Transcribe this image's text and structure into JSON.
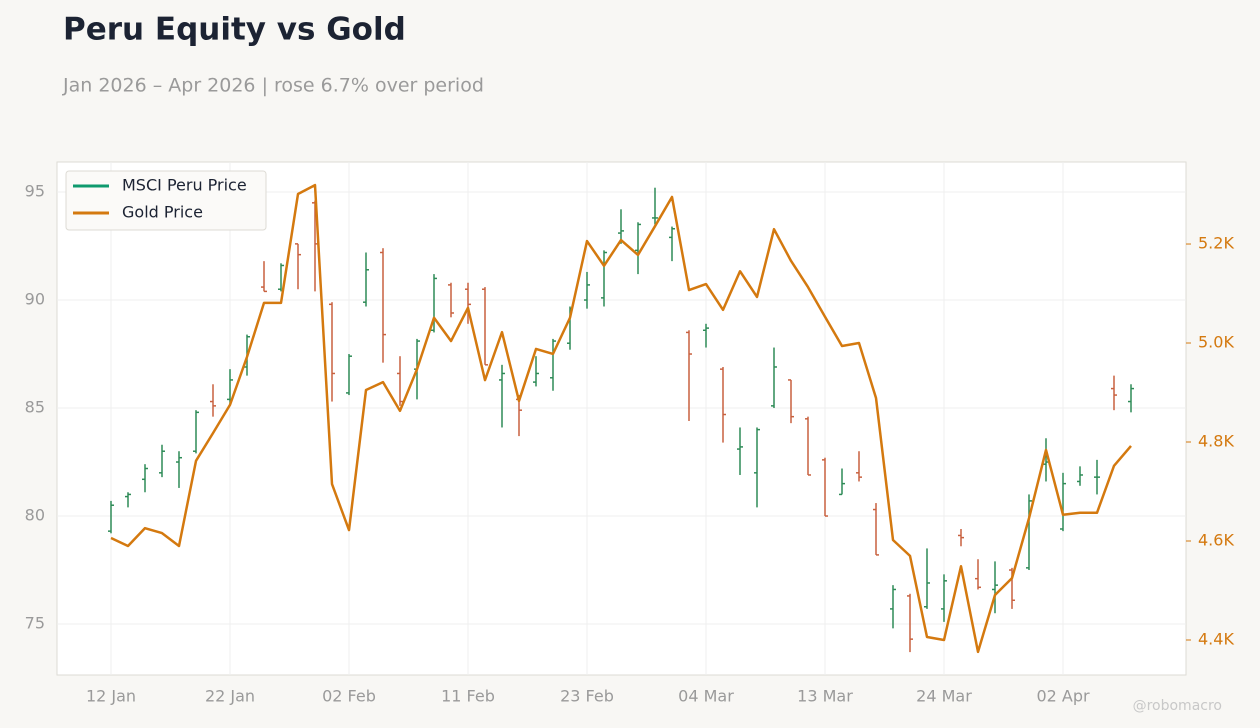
{
  "chart_data": {
    "type": "ohlc-line",
    "title": "Peru Equity vs Gold",
    "subtitle": "Jan 2026 – Apr 2026 | rose 6.7% over period",
    "watermark": "@robomacro",
    "categories": [
      "12 Jan",
      null,
      null,
      null,
      null,
      null,
      null,
      "22 Jan",
      null,
      null,
      null,
      null,
      null,
      null,
      "02 Feb",
      null,
      null,
      null,
      null,
      null,
      null,
      "11 Feb",
      null,
      null,
      null,
      null,
      null,
      null,
      "23 Feb",
      null,
      null,
      null,
      null,
      null,
      null,
      "04 Mar",
      null,
      null,
      null,
      null,
      null,
      null,
      "13 Mar",
      null,
      null,
      null,
      null,
      null,
      null,
      "24 Mar",
      null,
      null,
      null,
      null,
      null,
      null,
      "02 Apr",
      null,
      null,
      null,
      null
    ],
    "series": [
      {
        "name": "MSCI Peru Price",
        "type": "ohlc",
        "color": "#0f9a6e",
        "up_color": "#2e8b57",
        "down_color": "#c8613f",
        "open": [
          79.3,
          80.9,
          81.7,
          82.0,
          82.5,
          83.0,
          85.3,
          85.4,
          86.9,
          90.6,
          90.5,
          92.6,
          94.5,
          89.8,
          85.7,
          89.9,
          92.2,
          86.6,
          86.8,
          88.6,
          90.7,
          90.5,
          90.5,
          86.3,
          85.4,
          86.2,
          86.4,
          88.0,
          90.0,
          90.1,
          93.1,
          92.3,
          93.8,
          92.9,
          88.5,
          88.6,
          86.8,
          83.1,
          82.0,
          85.1,
          86.3,
          84.5,
          82.6,
          81.0,
          82.0,
          80.3,
          75.7,
          76.3,
          75.8,
          75.7,
          79.1,
          77.1,
          76.6,
          77.5,
          77.6,
          82.4,
          79.4,
          81.6,
          81.8,
          85.9,
          85.3
        ],
        "high": [
          80.7,
          81.1,
          82.4,
          83.3,
          83.0,
          84.9,
          86.1,
          86.8,
          88.4,
          91.8,
          91.7,
          92.6,
          94.6,
          89.9,
          87.5,
          92.2,
          92.4,
          87.4,
          88.2,
          91.2,
          90.8,
          90.8,
          90.6,
          87.0,
          85.6,
          87.4,
          88.2,
          89.7,
          91.3,
          92.3,
          94.2,
          93.6,
          95.2,
          93.4,
          88.6,
          88.9,
          86.9,
          84.1,
          84.1,
          87.8,
          86.3,
          84.6,
          82.7,
          82.2,
          83.0,
          80.6,
          76.8,
          76.4,
          78.5,
          77.3,
          79.4,
          78.0,
          77.9,
          77.6,
          81.0,
          83.6,
          82.0,
          82.3,
          82.6,
          86.5,
          86.1
        ],
        "low": [
          79.2,
          80.4,
          81.1,
          81.8,
          81.3,
          82.9,
          84.6,
          85.2,
          86.5,
          90.4,
          90.4,
          90.5,
          90.4,
          85.3,
          85.6,
          89.7,
          87.1,
          85.1,
          85.4,
          88.5,
          89.2,
          88.9,
          87.0,
          84.1,
          83.7,
          86.0,
          85.8,
          87.7,
          89.6,
          89.7,
          92.6,
          91.2,
          93.5,
          91.8,
          84.4,
          87.8,
          83.4,
          81.9,
          80.4,
          85.0,
          84.3,
          81.9,
          80.0,
          81.0,
          81.6,
          78.2,
          74.8,
          73.7,
          75.7,
          75.1,
          78.6,
          76.6,
          75.5,
          75.7,
          77.5,
          81.6,
          79.3,
          81.4,
          81.0,
          84.9,
          84.8
        ],
        "close": [
          80.5,
          81.0,
          82.2,
          83.0,
          82.7,
          84.8,
          85.1,
          86.3,
          88.3,
          90.4,
          91.6,
          92.1,
          92.6,
          86.6,
          87.4,
          91.4,
          88.4,
          85.3,
          88.1,
          91.0,
          89.4,
          89.8,
          87.0,
          86.6,
          84.9,
          86.6,
          88.1,
          89.6,
          90.7,
          92.2,
          93.2,
          93.5,
          93.8,
          93.3,
          87.5,
          88.7,
          84.7,
          83.2,
          84.0,
          86.9,
          84.6,
          81.9,
          80.0,
          81.5,
          81.8,
          78.2,
          76.6,
          74.3,
          76.9,
          77.0,
          79.0,
          76.7,
          76.8,
          76.1,
          80.7,
          82.5,
          81.5,
          81.9,
          81.8,
          85.6,
          85.9
        ]
      },
      {
        "name": "Gold Price",
        "type": "line",
        "axis": "y2",
        "color": "#d4790f",
        "values": [
          4606,
          4590,
          4626,
          4616,
          4590,
          4762,
          4818,
          4875,
          4972,
          5081,
          5081,
          5301,
          5319,
          4715,
          4622,
          4905,
          4921,
          4863,
          4947,
          5051,
          5004,
          5071,
          4925,
          5022,
          4883,
          4988,
          4978,
          5051,
          5206,
          5156,
          5208,
          5178,
          5236,
          5295,
          5107,
          5119,
          5067,
          5145,
          5093,
          5230,
          5166,
          5113,
          5053,
          4994,
          5000,
          4889,
          4602,
          4570,
          4406,
          4400,
          4549,
          4376,
          4491,
          4525,
          4646,
          4784,
          4653,
          4657,
          4657,
          4752,
          4792
        ]
      }
    ],
    "ylim": [
      72.64,
      96.39
    ],
    "yticks": [
      75,
      80,
      85,
      90,
      95
    ],
    "y2lim": [
      4329.3,
      5365.7
    ],
    "y2ticks": [
      {
        "value": 4400,
        "label": "4.4K"
      },
      {
        "value": 4600,
        "label": "4.6K"
      },
      {
        "value": 4800,
        "label": "4.8K"
      },
      {
        "value": 5000,
        "label": "5.0K"
      },
      {
        "value": 5200,
        "label": "5.2K"
      }
    ],
    "grid": true,
    "legend": "upper-left"
  }
}
